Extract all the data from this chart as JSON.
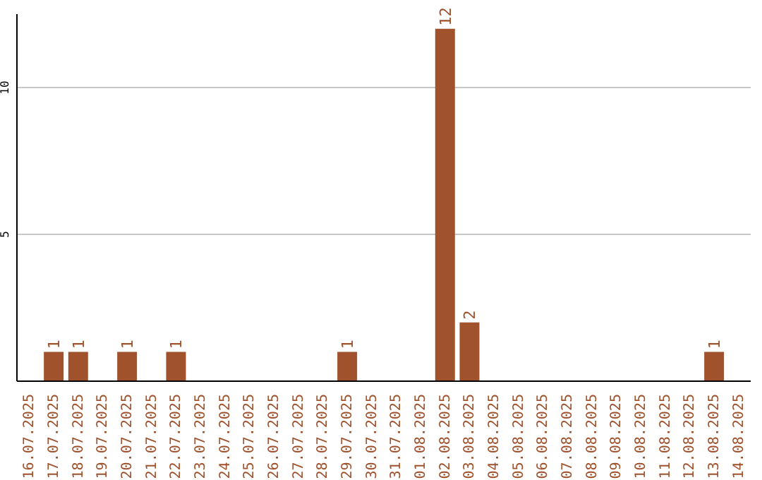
{
  "chart_data": {
    "type": "bar",
    "categories": [
      "16.07.2025",
      "17.07.2025",
      "18.07.2025",
      "19.07.2025",
      "20.07.2025",
      "21.07.2025",
      "22.07.2025",
      "23.07.2025",
      "24.07.2025",
      "25.07.2025",
      "26.07.2025",
      "27.07.2025",
      "28.07.2025",
      "29.07.2025",
      "30.07.2025",
      "31.07.2025",
      "01.08.2025",
      "02.08.2025",
      "03.08.2025",
      "04.08.2025",
      "05.08.2025",
      "06.08.2025",
      "07.08.2025",
      "08.08.2025",
      "09.08.2025",
      "10.08.2025",
      "11.08.2025",
      "12.08.2025",
      "13.08.2025",
      "14.08.2025"
    ],
    "values": [
      0,
      1,
      1,
      0,
      1,
      0,
      1,
      0,
      0,
      0,
      0,
      0,
      0,
      1,
      0,
      0,
      0,
      12,
      2,
      0,
      0,
      0,
      0,
      0,
      0,
      0,
      0,
      0,
      1,
      0
    ],
    "value_labels": [
      null,
      "1",
      "1",
      null,
      "1",
      null,
      "1",
      null,
      null,
      null,
      null,
      null,
      null,
      "1",
      null,
      null,
      null,
      "12",
      "2",
      null,
      null,
      null,
      null,
      null,
      null,
      null,
      null,
      null,
      "1",
      null
    ],
    "color": "#a0522d",
    "ylim": [
      0,
      12.5
    ],
    "yticks": [
      5,
      10
    ],
    "grid": "y"
  }
}
